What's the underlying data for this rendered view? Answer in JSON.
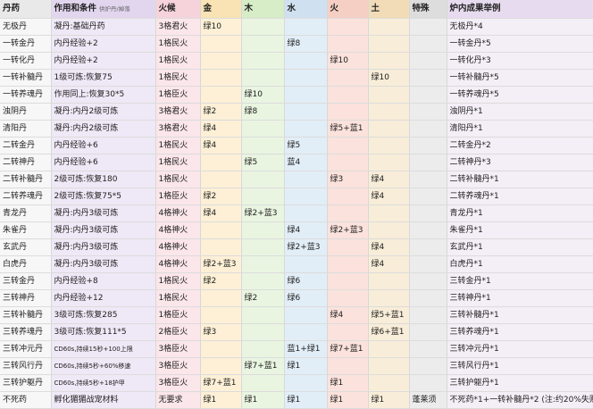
{
  "header": {
    "name": "丹药",
    "condition": "作用和条件",
    "condition_note": "供炉丹/掉落",
    "fire": "火候",
    "jin": "金",
    "mu": "木",
    "shui": "水",
    "huo": "火",
    "tu": "土",
    "special": "特殊",
    "result": "炉内成果举例"
  },
  "rows": [
    {
      "name": "无极丹",
      "cond": "凝丹:基础丹药",
      "fire": "3格君火",
      "jin": "绿10",
      "mu": "",
      "shui": "",
      "huo": "",
      "tu": "",
      "special": "",
      "result": "无极丹*4"
    },
    {
      "name": "一转金丹",
      "cond": "内丹经验+2",
      "fire": "1格民火",
      "jin": "",
      "mu": "",
      "shui": "绿8",
      "huo": "",
      "tu": "",
      "special": "",
      "result": "一转金丹*5"
    },
    {
      "name": "一转化丹",
      "cond": "内丹经验+2",
      "fire": "1格民火",
      "jin": "",
      "mu": "",
      "shui": "",
      "huo": "绿10",
      "tu": "",
      "special": "",
      "result": "一转化丹*3"
    },
    {
      "name": "一转补髓丹",
      "cond": "1级可炼:恢复75",
      "fire": "1格民火",
      "jin": "",
      "mu": "",
      "shui": "",
      "huo": "",
      "tu": "绿10",
      "special": "",
      "result": "一转补髓丹*5"
    },
    {
      "name": "一转养魂丹",
      "cond": "作用同上:恢复30*5",
      "fire": "1格臣火",
      "jin": "",
      "mu": "绿10",
      "shui": "",
      "huo": "",
      "tu": "",
      "special": "",
      "result": "一转养魂丹*5"
    },
    {
      "name": "浊阴丹",
      "cond": "凝丹:内丹2级可炼",
      "fire": "3格君火",
      "jin": "绿2",
      "mu": "绿8",
      "shui": "",
      "huo": "",
      "tu": "",
      "special": "",
      "result": "浊阴丹*1"
    },
    {
      "name": "清阳丹",
      "cond": "凝丹:内丹2级可炼",
      "fire": "3格君火",
      "jin": "绿4",
      "mu": "",
      "shui": "",
      "huo": "绿5+蓝1",
      "tu": "",
      "special": "",
      "result": "清阳丹*1"
    },
    {
      "name": "二转金丹",
      "cond": "内丹经验+6",
      "fire": "1格民火",
      "jin": "绿4",
      "mu": "",
      "shui": "绿5",
      "huo": "",
      "tu": "",
      "special": "",
      "result": "二转金丹*2"
    },
    {
      "name": "二转神丹",
      "cond": "内丹经验+6",
      "fire": "1格民火",
      "jin": "",
      "mu": "绿5",
      "shui": "蓝4",
      "huo": "",
      "tu": "",
      "special": "",
      "result": "二转神丹*3"
    },
    {
      "name": "二转补髓丹",
      "cond": "2级可炼:恢复180",
      "fire": "1格民火",
      "jin": "",
      "mu": "",
      "shui": "",
      "huo": "绿3",
      "tu": "绿4",
      "special": "",
      "result": "二转补髓丹*1"
    },
    {
      "name": "二转养魂丹",
      "cond": "2级可炼:恢复75*5",
      "fire": "1格臣火",
      "jin": "绿2",
      "mu": "",
      "shui": "",
      "huo": "",
      "tu": "绿4",
      "special": "",
      "result": "二转养魂丹*1"
    },
    {
      "name": "青龙丹",
      "cond": "凝丹:内丹3级可炼",
      "fire": "4格神火",
      "jin": "绿4",
      "mu": "绿2+蓝3",
      "shui": "",
      "huo": "",
      "tu": "",
      "special": "",
      "result": "青龙丹*1"
    },
    {
      "name": "朱雀丹",
      "cond": "凝丹:内丹3级可炼",
      "fire": "4格神火",
      "jin": "",
      "mu": "",
      "shui": "绿4",
      "huo": "绿2+蓝3",
      "tu": "",
      "special": "",
      "result": "朱雀丹*1"
    },
    {
      "name": "玄武丹",
      "cond": "凝丹:内丹3级可炼",
      "fire": "4格神火",
      "jin": "",
      "mu": "",
      "shui": "绿2+蓝3",
      "huo": "",
      "tu": "绿4",
      "special": "",
      "result": "玄武丹*1"
    },
    {
      "name": "白虎丹",
      "cond": "凝丹:内丹3级可炼",
      "fire": "4格神火",
      "jin": "绿2+蓝3",
      "mu": "",
      "shui": "",
      "huo": "",
      "tu": "绿4",
      "special": "",
      "result": "白虎丹*1"
    },
    {
      "name": "三转金丹",
      "cond": "内丹经验+8",
      "fire": "1格民火",
      "jin": "绿2",
      "mu": "",
      "shui": "绿6",
      "huo": "",
      "tu": "",
      "special": "",
      "result": "三转金丹*1"
    },
    {
      "name": "三转神丹",
      "cond": "内丹经验+12",
      "fire": "1格民火",
      "jin": "",
      "mu": "绿2",
      "shui": "绿6",
      "huo": "",
      "tu": "",
      "special": "",
      "result": "三转神丹*1"
    },
    {
      "name": "三转补髓丹",
      "cond": "3级可炼:恢复285",
      "fire": "1格臣火",
      "jin": "",
      "mu": "",
      "shui": "",
      "huo": "绿4",
      "tu": "绿5+蓝1",
      "special": "",
      "result": "三转补髓丹*1"
    },
    {
      "name": "三转养魂丹",
      "cond": "3级可炼:恢复111*5",
      "fire": "2格臣火",
      "jin": "绿3",
      "mu": "",
      "shui": "",
      "huo": "",
      "tu": "绿6+蓝1",
      "special": "",
      "result": "三转养魂丹*1"
    },
    {
      "name": "三转冲元丹",
      "cond": "CD60s,持续15秒+100上限",
      "fire": "3格臣火",
      "jin": "",
      "mu": "",
      "shui": "蓝1+绿1",
      "huo": "绿7+蓝1",
      "tu": "",
      "special": "",
      "result": "三转冲元丹*1"
    },
    {
      "name": "三转风行丹",
      "cond": "CD60s,持续5秒+60%移速",
      "fire": "3格臣火",
      "jin": "",
      "mu": "绿7+蓝1",
      "shui": "绿1",
      "huo": "",
      "tu": "",
      "special": "",
      "result": "三转风行丹*1"
    },
    {
      "name": "三转护躯丹",
      "cond": "CD60s,持续5秒+18护甲",
      "fire": "3格臣火",
      "jin": "绿7+蓝1",
      "mu": "",
      "shui": "",
      "huo": "绿1",
      "tu": "",
      "special": "",
      "result": "三转护躯丹*1"
    },
    {
      "name": "不死药",
      "cond": "孵化猸猸战宠材料",
      "fire": "无要求",
      "jin": "绿1",
      "mu": "绿1",
      "shui": "绿1",
      "huo": "绿1",
      "tu": "绿1",
      "special": "蓬莱须",
      "result": "不死药*1+一转补髓丹*2 (注:约20%失败)"
    }
  ]
}
